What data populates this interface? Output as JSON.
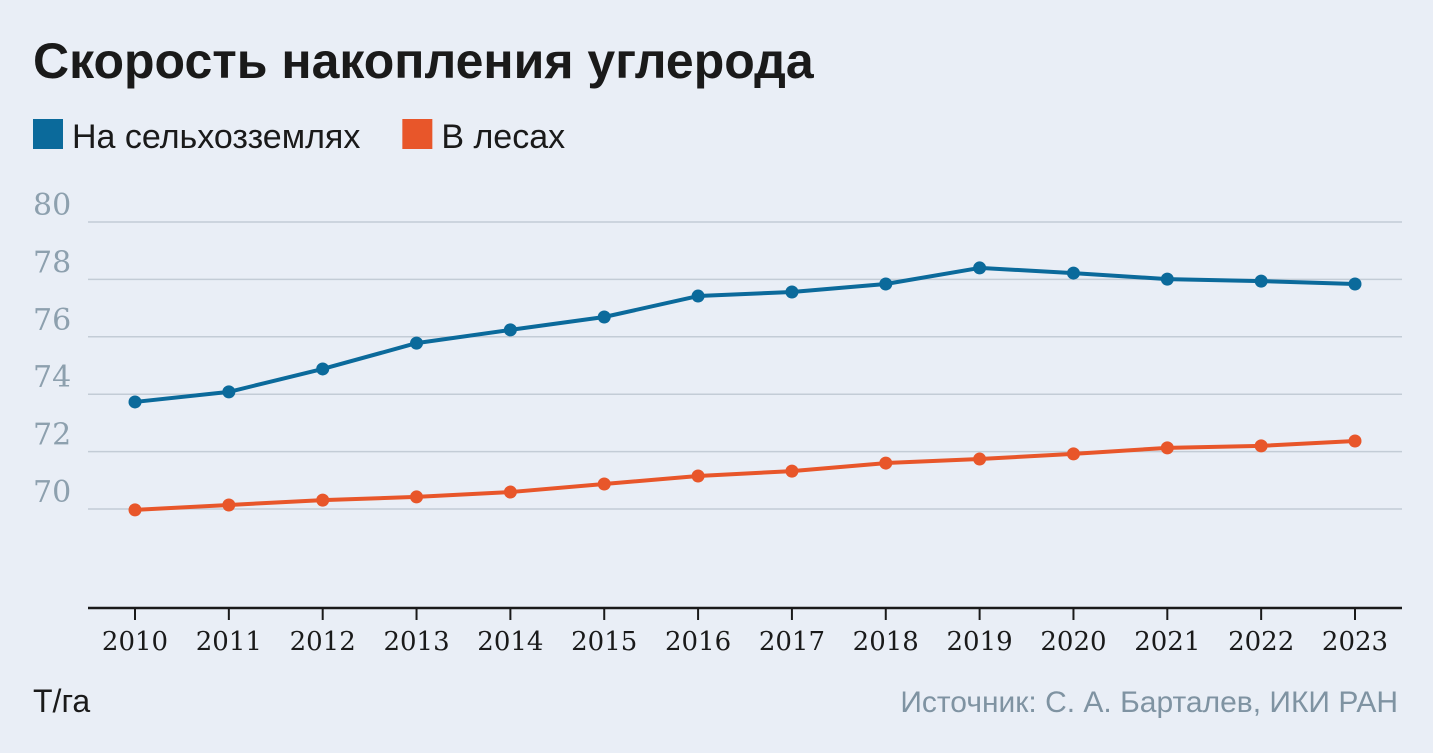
{
  "chart_data": {
    "type": "line",
    "title": "Скорость накопления углерода",
    "ylabel": "Т/га",
    "xlabel": "",
    "source": "Источник: С. А. Барталев, ИКИ РАН",
    "x": [
      2010,
      2011,
      2012,
      2013,
      2014,
      2015,
      2016,
      2017,
      2018,
      2019,
      2020,
      2021,
      2022,
      2023
    ],
    "xticks": [
      "2010",
      "2011",
      "2012",
      "2013",
      "2014",
      "2015",
      "2016",
      "2017",
      "2018",
      "2019",
      "2020",
      "2021",
      "2022",
      "2023"
    ],
    "yticks": [
      "70",
      "72",
      "74",
      "76",
      "78",
      "80"
    ],
    "ylim": [
      66.55,
      80
    ],
    "grid": true,
    "legend_position": "top-left",
    "series": [
      {
        "name": "На сельхозземлях",
        "color": "#0b6a9b",
        "values": [
          73.73,
          74.08,
          74.88,
          75.78,
          76.24,
          76.69,
          77.42,
          77.56,
          77.84,
          78.4,
          78.22,
          78.01,
          77.94,
          77.84
        ]
      },
      {
        "name": "В лесах",
        "color": "#e8562a",
        "values": [
          69.97,
          70.14,
          70.31,
          70.42,
          70.59,
          70.87,
          71.15,
          71.32,
          71.6,
          71.74,
          71.92,
          72.13,
          72.2,
          72.37
        ]
      }
    ]
  }
}
